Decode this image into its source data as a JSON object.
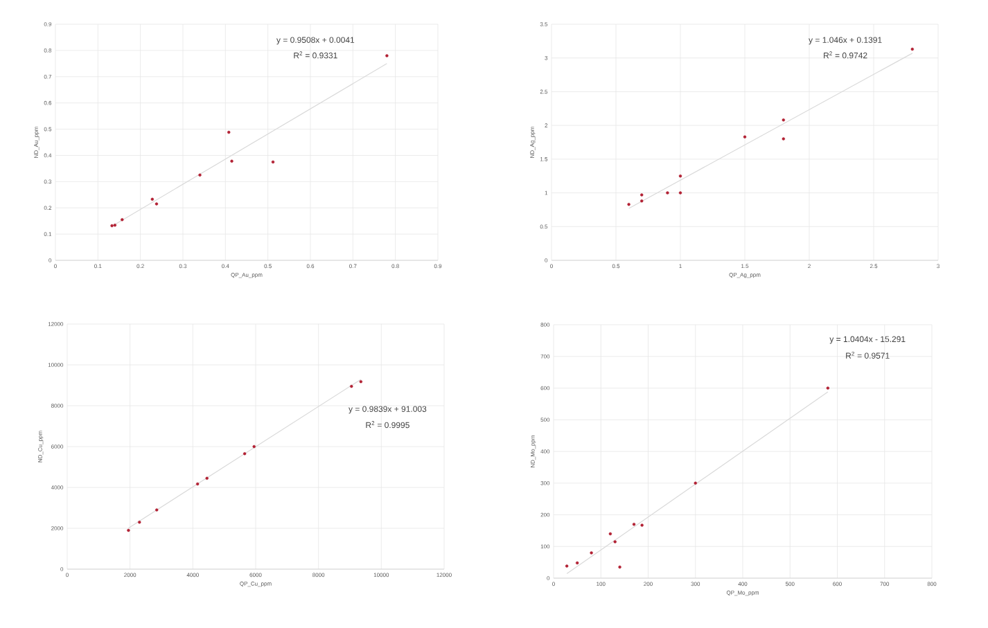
{
  "chart_data": [
    {
      "type": "scatter",
      "xlabel": "QP_Au_ppm",
      "ylabel": "ND_Au_ppm",
      "xlim": [
        0,
        0.9
      ],
      "ylim": [
        0,
        0.9
      ],
      "xticks": [
        0,
        0.1,
        0.2,
        0.3,
        0.4,
        0.5,
        0.6,
        0.7,
        0.8,
        0.9
      ],
      "yticks": [
        0,
        0.1,
        0.2,
        0.3,
        0.4,
        0.5,
        0.6,
        0.7,
        0.8,
        0.9
      ],
      "grid": true,
      "series": [
        {
          "color": "#b22234",
          "x": [
            0.133,
            0.14,
            0.157,
            0.228,
            0.238,
            0.34,
            0.408,
            0.415,
            0.512,
            0.78
          ],
          "values": [
            0.132,
            0.134,
            0.155,
            0.233,
            0.215,
            0.325,
            0.488,
            0.378,
            0.375,
            0.78
          ]
        },
        {
          "type": "line",
          "color": "#d9d9d9",
          "x": [
            0.133,
            0.78
          ],
          "values": [
            0.13,
            0.75
          ]
        }
      ],
      "annotations": [
        "y = 0.9508x + 0.0041",
        "R$^{2}$ = 0.9331"
      ]
    },
    {
      "type": "scatter",
      "xlabel": "QP_Ag_ppm",
      "ylabel": "ND_Ag_ppm",
      "xlim": [
        0,
        3
      ],
      "ylim": [
        0,
        3.5
      ],
      "xticks": [
        0,
        0.5,
        1,
        1.5,
        2,
        2.5,
        3
      ],
      "yticks": [
        0,
        0.5,
        1,
        1.5,
        2,
        2.5,
        3,
        3.5
      ],
      "grid": true,
      "series": [
        {
          "color": "#b22234",
          "x": [
            0.6,
            0.7,
            0.7,
            0.9,
            1.0,
            1.0,
            1.5,
            1.8,
            1.8,
            2.8
          ],
          "values": [
            0.83,
            0.97,
            0.88,
            1.0,
            1.25,
            1.0,
            1.83,
            2.08,
            1.8,
            3.13
          ]
        },
        {
          "type": "line",
          "color": "#d9d9d9",
          "x": [
            0.6,
            2.8
          ],
          "values": [
            0.77,
            3.07
          ]
        }
      ],
      "annotations": [
        "y = 1.046x + 0.1391",
        "R$^{2}$ = 0.9742"
      ]
    },
    {
      "type": "scatter",
      "xlabel": "QP_Cu_ppm",
      "ylabel": "ND_Cu_ppm",
      "xlim": [
        0,
        12000
      ],
      "ylim": [
        0,
        12000
      ],
      "xticks": [
        0,
        2000,
        4000,
        6000,
        8000,
        10000,
        12000
      ],
      "yticks": [
        0,
        2000,
        4000,
        6000,
        8000,
        10000,
        12000
      ],
      "grid": true,
      "series": [
        {
          "color": "#b22234",
          "x": [
            1950,
            2300,
            2850,
            4150,
            4450,
            5650,
            5950,
            9050,
            9350
          ],
          "values": [
            1900,
            2300,
            2900,
            4170,
            4450,
            5650,
            6000,
            8950,
            9180
          ]
        },
        {
          "type": "line",
          "color": "#d9d9d9",
          "x": [
            1950,
            9350
          ],
          "values": [
            2010,
            9290
          ]
        }
      ],
      "annotations": [
        "y = 0.9839x + 91.003",
        "R$^{2}$ = 0.9995"
      ]
    },
    {
      "type": "scatter",
      "xlabel": "QP_Mo_ppm",
      "ylabel": "ND_Mo_ppm",
      "xlim": [
        0,
        800
      ],
      "ylim": [
        0,
        800
      ],
      "xticks": [
        0,
        100,
        200,
        300,
        400,
        500,
        600,
        700,
        800
      ],
      "yticks": [
        0,
        100,
        200,
        300,
        400,
        500,
        600,
        700,
        800
      ],
      "grid": true,
      "series": [
        {
          "color": "#b22234",
          "x": [
            28,
            50,
            80,
            120,
            130,
            140,
            170,
            187,
            300,
            580
          ],
          "values": [
            38,
            48,
            80,
            140,
            115,
            35,
            170,
            167,
            300,
            600
          ]
        },
        {
          "type": "line",
          "color": "#d9d9d9",
          "x": [
            28,
            580
          ],
          "values": [
            14,
            588
          ]
        }
      ],
      "annotations": [
        "y = 1.0404x - 15.291",
        "R$^{2}$ = 0.9571"
      ]
    }
  ]
}
